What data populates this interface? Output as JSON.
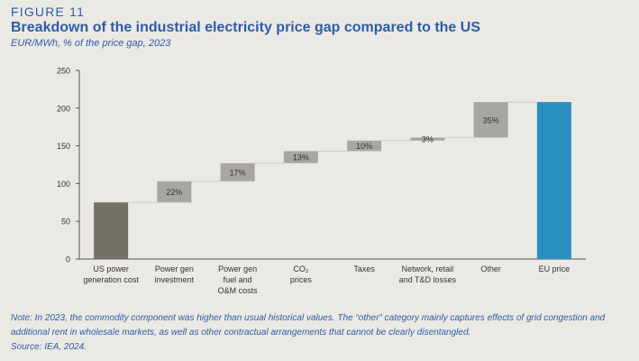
{
  "figure": {
    "label": "FIGURE 11",
    "title": "Breakdown of the industrial electricity price gap compared to the US",
    "subtitle": "EUR/MWh, % of the price gap, 2023",
    "note": "Note: In 2023, the commodity component was higher than usual historical values. The “other” category mainly captures effects of grid congestion and additional rent in wholesale markets, as well as other contractual arrangements that cannot be clearly disentangled.",
    "source": "Source: IEA, 2024."
  },
  "colors": {
    "text_blue": "#2e5da8",
    "base_bar": "#747069",
    "step_bar": "#a8a6a1",
    "total_bar": "#2a8fc0",
    "axis": "#555555",
    "connector": "#cfcdc8"
  },
  "chart_data": {
    "type": "bar",
    "subtype": "waterfall",
    "ylim": [
      0,
      250
    ],
    "yticks": [
      0,
      50,
      100,
      150,
      200,
      250
    ],
    "grid": false,
    "categories": [
      [
        "US power",
        "generation cost"
      ],
      [
        "Power gen",
        "investment"
      ],
      [
        "Power gen",
        "fuel and",
        "O&M costs"
      ],
      [
        "CO₂",
        "prices"
      ],
      [
        "Taxes"
      ],
      [
        "Network, retail",
        "and T&D losses"
      ],
      [
        "Other"
      ],
      [
        "EU price"
      ]
    ],
    "bars": [
      {
        "kind": "base",
        "start": 0,
        "end": 75,
        "label": ""
      },
      {
        "kind": "step",
        "start": 75,
        "end": 103,
        "label": "22%"
      },
      {
        "kind": "step",
        "start": 103,
        "end": 127,
        "label": "17%"
      },
      {
        "kind": "step",
        "start": 127,
        "end": 143,
        "label": "13%"
      },
      {
        "kind": "step",
        "start": 143,
        "end": 157,
        "label": "10%"
      },
      {
        "kind": "step",
        "start": 157,
        "end": 161,
        "label": "3%"
      },
      {
        "kind": "step",
        "start": 161,
        "end": 208,
        "label": "35%"
      },
      {
        "kind": "total",
        "start": 0,
        "end": 208,
        "label": ""
      }
    ]
  }
}
